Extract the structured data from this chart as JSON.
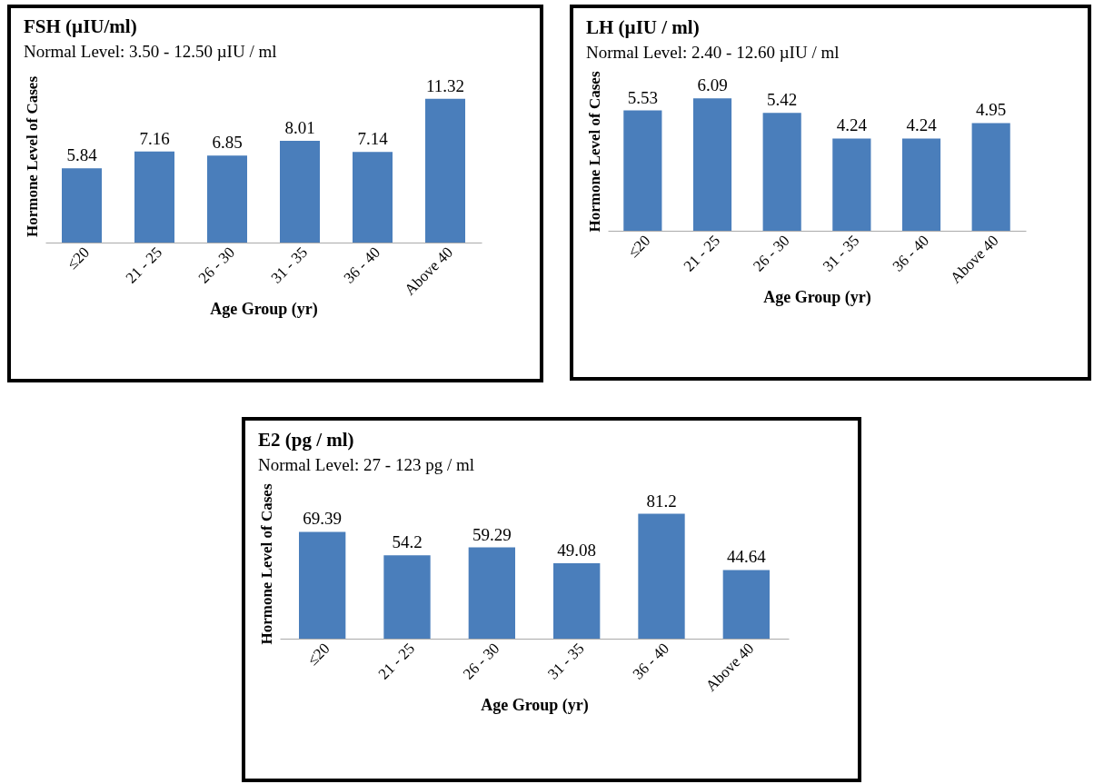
{
  "chart_data": [
    {
      "type": "bar",
      "title": "FSH (µIU/ml)",
      "subtitle": "Normal Level: 3.50 - 12.50 µIU / ml",
      "xlabel": "Age Group  (yr)",
      "ylabel": "Hormone Level of Cases",
      "categories": [
        "≤20",
        "21 - 25",
        "26 - 30",
        "31 - 35",
        "36 - 40",
        "Above 40"
      ],
      "values": [
        5.84,
        7.16,
        6.85,
        8.01,
        7.14,
        11.32
      ],
      "color": "#4a7ebb",
      "data_labels": true,
      "tick_labels": "x"
    },
    {
      "type": "bar",
      "title": "LH (µIU / ml)",
      "subtitle": "Normal Level: 2.40 - 12.60 µIU / ml",
      "xlabel": "Age Group  (yr)",
      "ylabel": "Hormone Level of Cases",
      "categories": [
        "≤20",
        "21 - 25",
        "26 - 30",
        "31 - 35",
        "36 - 40",
        "Above 40"
      ],
      "values": [
        5.53,
        6.09,
        5.42,
        4.24,
        4.24,
        4.95
      ],
      "color": "#4a7ebb",
      "data_labels": true,
      "tick_labels": "x"
    },
    {
      "type": "bar",
      "title": "E2 (pg / ml)",
      "subtitle": "Normal Level: 27 - 123 pg / ml",
      "xlabel": "Age Group  (yr)",
      "ylabel": "Hormone Level of Cases",
      "categories": [
        "≤20",
        "21 - 25",
        "26 - 30",
        "31 - 35",
        "36 - 40",
        "Above 40"
      ],
      "values": [
        69.39,
        54.2,
        59.29,
        49.08,
        81.2,
        44.64
      ],
      "color": "#4a7ebb",
      "data_labels": true,
      "tick_labels": "x"
    }
  ]
}
